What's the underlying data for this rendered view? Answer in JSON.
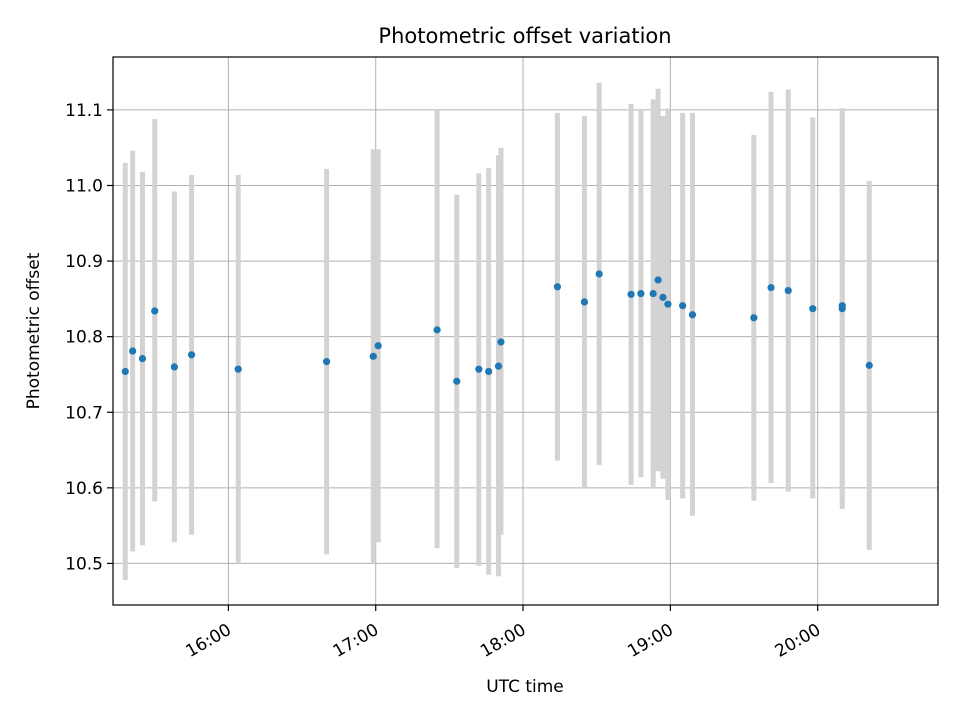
{
  "chart_data": {
    "type": "scatter",
    "title": "Photometric offset variation",
    "xlabel": "UTC time",
    "ylabel": "Photometric offset",
    "x_ticks": [
      "16:00",
      "17:00",
      "18:00",
      "19:00",
      "20:00"
    ],
    "y_ticks": [
      "10.5",
      "10.6",
      "10.7",
      "10.8",
      "10.9",
      "11.0",
      "11.1"
    ],
    "xlim": [
      "15:13",
      "20:49"
    ],
    "ylim": [
      10.445,
      11.17
    ],
    "grid": true,
    "errorbar_color": "#d3d3d3",
    "point_color": "#1f77b4",
    "points": [
      {
        "t": "15:18",
        "y": 10.754,
        "ylow": 10.478,
        "yhigh": 11.03
      },
      {
        "t": "15:21",
        "y": 10.781,
        "ylow": 10.516,
        "yhigh": 11.046
      },
      {
        "t": "15:25",
        "y": 10.771,
        "ylow": 10.524,
        "yhigh": 11.018
      },
      {
        "t": "15:30",
        "y": 10.834,
        "ylow": 10.582,
        "yhigh": 11.088
      },
      {
        "t": "15:38",
        "y": 10.76,
        "ylow": 10.528,
        "yhigh": 10.992
      },
      {
        "t": "15:45",
        "y": 10.776,
        "ylow": 10.538,
        "yhigh": 11.014
      },
      {
        "t": "16:04",
        "y": 10.757,
        "ylow": 10.5,
        "yhigh": 11.014
      },
      {
        "t": "16:40",
        "y": 10.767,
        "ylow": 10.512,
        "yhigh": 11.022
      },
      {
        "t": "16:59",
        "y": 10.774,
        "ylow": 10.5,
        "yhigh": 11.048
      },
      {
        "t": "17:01",
        "y": 10.788,
        "ylow": 10.528,
        "yhigh": 11.048
      },
      {
        "t": "17:25",
        "y": 10.809,
        "ylow": 10.52,
        "yhigh": 11.099
      },
      {
        "t": "17:33",
        "y": 10.741,
        "ylow": 10.494,
        "yhigh": 10.988
      },
      {
        "t": "17:42",
        "y": 10.757,
        "ylow": 10.497,
        "yhigh": 11.016
      },
      {
        "t": "17:46",
        "y": 10.754,
        "ylow": 10.485,
        "yhigh": 11.023
      },
      {
        "t": "17:50",
        "y": 10.761,
        "ylow": 10.483,
        "yhigh": 11.04
      },
      {
        "t": "17:51",
        "y": 10.793,
        "ylow": 10.538,
        "yhigh": 11.05
      },
      {
        "t": "18:14",
        "y": 10.866,
        "ylow": 10.636,
        "yhigh": 11.096
      },
      {
        "t": "18:25",
        "y": 10.846,
        "ylow": 10.6,
        "yhigh": 11.092
      },
      {
        "t": "18:31",
        "y": 10.883,
        "ylow": 10.63,
        "yhigh": 11.136
      },
      {
        "t": "18:44",
        "y": 10.856,
        "ylow": 10.604,
        "yhigh": 11.108
      },
      {
        "t": "18:48",
        "y": 10.857,
        "ylow": 10.614,
        "yhigh": 11.1
      },
      {
        "t": "18:53",
        "y": 10.857,
        "ylow": 10.6,
        "yhigh": 11.114
      },
      {
        "t": "18:55",
        "y": 10.875,
        "ylow": 10.622,
        "yhigh": 11.128
      },
      {
        "t": "18:57",
        "y": 10.852,
        "ylow": 10.612,
        "yhigh": 11.092
      },
      {
        "t": "18:59",
        "y": 10.843,
        "ylow": 10.584,
        "yhigh": 11.102
      },
      {
        "t": "19:05",
        "y": 10.841,
        "ylow": 10.586,
        "yhigh": 11.096
      },
      {
        "t": "19:09",
        "y": 10.829,
        "ylow": 10.563,
        "yhigh": 11.096
      },
      {
        "t": "19:34",
        "y": 10.825,
        "ylow": 10.583,
        "yhigh": 11.067
      },
      {
        "t": "19:41",
        "y": 10.865,
        "ylow": 10.606,
        "yhigh": 11.124
      },
      {
        "t": "19:48",
        "y": 10.861,
        "ylow": 10.595,
        "yhigh": 11.127
      },
      {
        "t": "19:58",
        "y": 10.837,
        "ylow": 10.586,
        "yhigh": 11.09
      },
      {
        "t": "20:10",
        "y": 10.837,
        "ylow": 10.572,
        "yhigh": 11.102
      },
      {
        "t": "20:10",
        "y": 10.841,
        "ylow": 10.58,
        "yhigh": 11.102
      },
      {
        "t": "20:21",
        "y": 10.762,
        "ylow": 10.518,
        "yhigh": 11.006
      }
    ]
  }
}
